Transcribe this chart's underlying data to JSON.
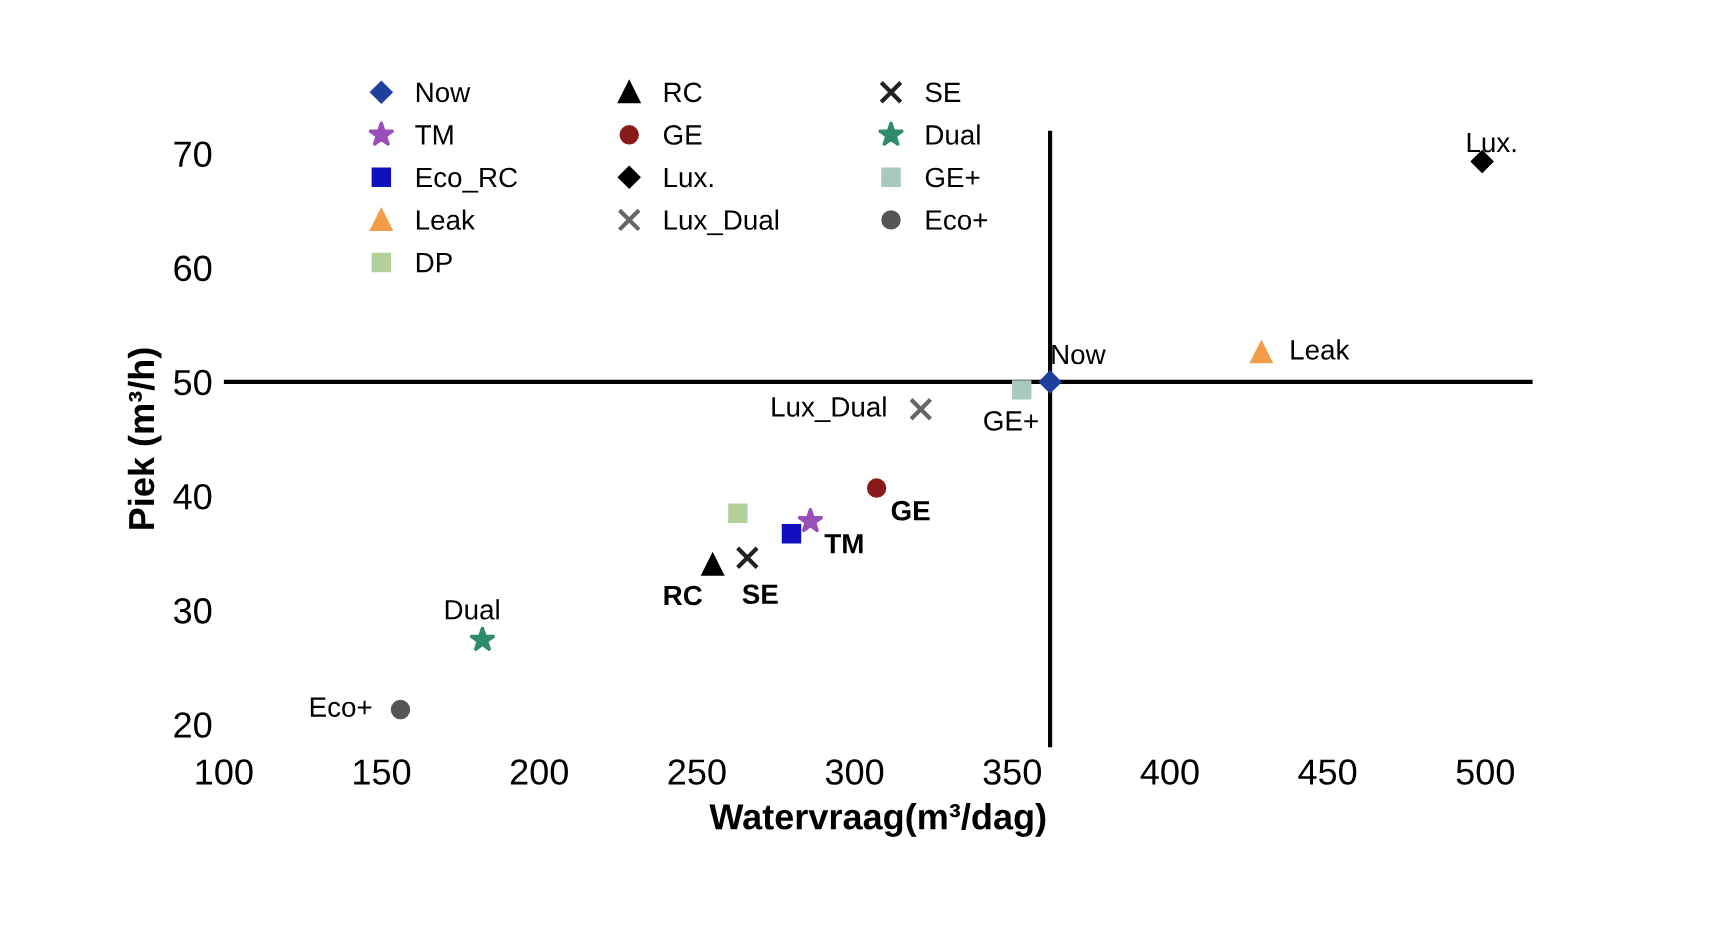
{
  "chart_data": {
    "type": "scatter",
    "xlabel": "Watervraag(m³/dag)",
    "ylabel": "Piek (m³/h)",
    "xlim": [
      100,
      515
    ],
    "ylim": [
      18,
      72
    ],
    "xticks": [
      100,
      150,
      200,
      250,
      300,
      350,
      400,
      450,
      500
    ],
    "yticks": [
      20,
      30,
      40,
      50,
      60,
      70
    ],
    "grid": false,
    "legend": "top left",
    "ref_lines": [
      {
        "axis": "x",
        "value": 362,
        "color": "#000000"
      },
      {
        "axis": "y",
        "value": 50,
        "color": "#000000"
      }
    ],
    "series": [
      {
        "name": "Now",
        "color": "#2040a0",
        "marker": "diamond",
        "x": [
          362
        ],
        "values": [
          50
        ]
      },
      {
        "name": "RC",
        "color": "#000000",
        "marker": "triangle",
        "x": [
          255
        ],
        "values": [
          34
        ]
      },
      {
        "name": "SE",
        "color": "#222222",
        "marker": "cross",
        "x": [
          266
        ],
        "values": [
          34.6
        ]
      },
      {
        "name": "TM",
        "color": "#9b4fb8",
        "marker": "star",
        "x": [
          286
        ],
        "values": [
          37.8
        ]
      },
      {
        "name": "GE",
        "color": "#8b1a1a",
        "marker": "circle",
        "x": [
          307
        ],
        "values": [
          40.7
        ]
      },
      {
        "name": "Dual",
        "color": "#2e8b6e",
        "marker": "star",
        "x": [
          182
        ],
        "values": [
          27.4
        ]
      },
      {
        "name": "Eco_RC",
        "color": "#1010c0",
        "marker": "square",
        "x": [
          280
        ],
        "values": [
          36.7
        ]
      },
      {
        "name": "Lux.",
        "color": "#000000",
        "marker": "diamond",
        "x": [
          499
        ],
        "values": [
          69.3
        ]
      },
      {
        "name": "GE+",
        "color": "#a8c8c0",
        "marker": "square",
        "x": [
          353
        ],
        "values": [
          49.3
        ]
      },
      {
        "name": "Leak",
        "color": "#f39c4a",
        "marker": "triangle",
        "x": [
          429
        ],
        "values": [
          52.6
        ]
      },
      {
        "name": "Lux_Dual",
        "color": "#666666",
        "marker": "cross",
        "x": [
          321
        ],
        "values": [
          47.6
        ]
      },
      {
        "name": "Eco+",
        "color": "#555555",
        "marker": "circle",
        "x": [
          156
        ],
        "values": [
          21.3
        ]
      },
      {
        "name": "DP",
        "color": "#b5cf9a",
        "marker": "square",
        "x": [
          263
        ],
        "values": [
          38.5
        ]
      }
    ],
    "annotations": [
      {
        "text": "Now",
        "x": 362,
        "y": 50
      },
      {
        "text": "Lux.",
        "x": 499,
        "y": 69.3
      },
      {
        "text": "Leak",
        "x": 429,
        "y": 52.6
      },
      {
        "text": "GE+",
        "x": 353,
        "y": 49.3
      },
      {
        "text": "Lux_Dual",
        "x": 321,
        "y": 47.6
      },
      {
        "text": "GE",
        "x": 307,
        "y": 40.7
      },
      {
        "text": "TM",
        "x": 286,
        "y": 37.8
      },
      {
        "text": "RC",
        "x": 255,
        "y": 34
      },
      {
        "text": "SE",
        "x": 266,
        "y": 34.6
      },
      {
        "text": "Dual",
        "x": 182,
        "y": 27.4
      },
      {
        "text": "Eco+",
        "x": 156,
        "y": 21.3
      }
    ]
  }
}
